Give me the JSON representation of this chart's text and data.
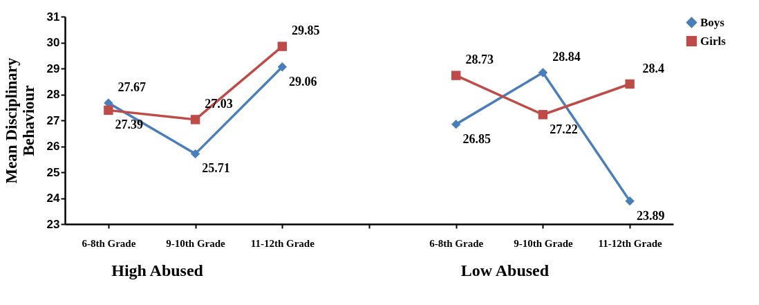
{
  "chart_data": {
    "type": "line",
    "ylabel": "Mean Disciplinary Behaviour",
    "categories": [
      "6-8th Grade",
      "9-10th Grade",
      "11-12th Grade",
      null,
      "6-8th Grade",
      "9-10th Grade",
      "11-12th Grade"
    ],
    "series": [
      {
        "name": "Boys",
        "color": "#4a7ebb",
        "marker": "diamond",
        "values": [
          27.67,
          25.71,
          29.06,
          null,
          26.85,
          28.84,
          23.89
        ]
      },
      {
        "name": "Girls",
        "color": "#be4b48",
        "marker": "square",
        "values": [
          27.39,
          27.03,
          29.85,
          null,
          28.73,
          27.22,
          28.4
        ]
      }
    ],
    "ylim": [
      23,
      31
    ],
    "yticks": [
      23,
      24,
      25,
      26,
      27,
      28,
      29,
      30,
      31
    ],
    "data_labels": true,
    "legend": "right",
    "grid": false,
    "annotations": [
      "High Abused",
      "Low Abused"
    ]
  }
}
